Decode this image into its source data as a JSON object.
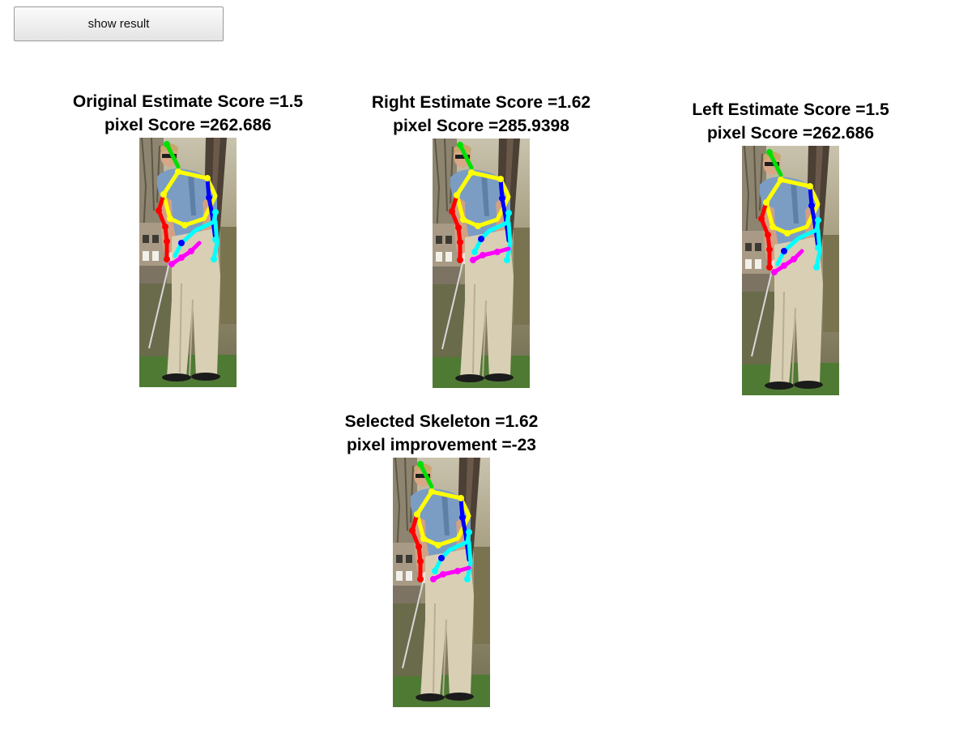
{
  "toolbar": {
    "show_result_label": "show result"
  },
  "panels": {
    "original": {
      "line1": "Original Estimate Score =1.5",
      "line2": "pixel Score =262.686"
    },
    "right": {
      "line1": "Right Estimate Score =1.62",
      "line2": "pixel Score =285.9398"
    },
    "left": {
      "line1": "Left Estimate Score =1.5",
      "line2": "pixel Score =262.686"
    },
    "selected": {
      "line1": "Selected Skeleton =1.62",
      "line2": "pixel improvement =-23"
    }
  },
  "skeleton_colors": {
    "head": "#00e000",
    "torso": "#ffff00",
    "right_arm": "#ff0000",
    "left_arm": "#0000ff",
    "left_forearm": "#00ffff",
    "hands": "#ff00ff"
  }
}
